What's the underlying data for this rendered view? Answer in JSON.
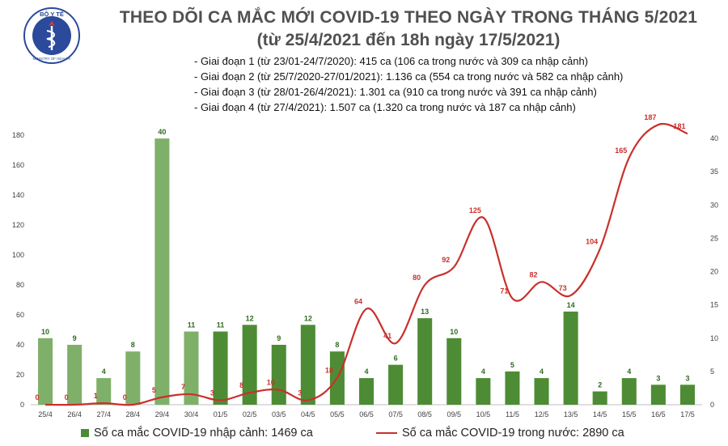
{
  "logo": {
    "top_text": "BỘ Y TẾ",
    "bottom_text": "MINISTRY OF HEALTH"
  },
  "header": {
    "title_line1": "THEO DÕI CA MẮC MỚI COVID-19 THEO NGÀY TRONG THÁNG 5/2021",
    "title_line2": "(từ 25/4/2021 đến 18h ngày 17/5/2021)"
  },
  "notes": [
    "- Giai đoạn 1 (từ 23/01-24/7/2020): 415 ca (106 ca trong nước và 309 ca nhập cảnh)",
    "- Giai đoạn 2 (từ 25/7/2020-27/01/2021): 1.136 ca (554 ca trong nước và 582 ca nhập cảnh)",
    "- Giai đoạn 3 (từ 28/01-26/4/2021): 1.301 ca (910 ca trong nước và 391 ca nhập cảnh)",
    "- Giai đoạn 4 (từ 27/4/2021): 1.507 ca (1.320 ca trong nước và 187 ca nhập cảnh)"
  ],
  "colors": {
    "bar": "#4d8c35",
    "bar_light": "#7fb069",
    "line": "#c9302c",
    "text": "#505050",
    "grid": "#e6e6e6",
    "logo": "#2b4a9c"
  },
  "chart_data": {
    "type": "bar+line",
    "categories": [
      "25/4",
      "26/4",
      "27/4",
      "28/4",
      "29/4",
      "30/4",
      "01/5",
      "02/5",
      "03/5",
      "04/5",
      "05/5",
      "06/5",
      "07/5",
      "08/5",
      "09/5",
      "10/5",
      "11/5",
      "12/5",
      "13/5",
      "14/5",
      "15/5",
      "16/5",
      "17/5"
    ],
    "bar_series": {
      "name": "Số ca mắc COVID-19 nhập cảnh: 1469 ca",
      "axis": "right",
      "values": [
        10,
        9,
        4,
        8,
        40,
        11,
        11,
        12,
        9,
        12,
        8,
        4,
        6,
        13,
        10,
        4,
        5,
        4,
        14,
        2,
        4,
        3,
        3
      ]
    },
    "line_series": {
      "name": "Số ca mắc COVID-19 trong nước: 2890 ca",
      "axis": "left",
      "values": [
        0,
        0,
        1,
        0,
        5,
        7,
        3,
        8,
        10,
        3,
        18,
        64,
        41,
        80,
        92,
        125,
        71,
        82,
        73,
        104,
        165,
        187,
        181
      ]
    },
    "left_axis": {
      "ticks": [
        0,
        20,
        40,
        60,
        80,
        100,
        120,
        140,
        160,
        180
      ],
      "ylim": [
        0,
        180
      ]
    },
    "right_axis": {
      "ticks": [
        0,
        5,
        10,
        15,
        20,
        25,
        30,
        35,
        40
      ],
      "ylim": [
        0,
        40.5
      ]
    },
    "grid": false,
    "legend": "bottom"
  }
}
